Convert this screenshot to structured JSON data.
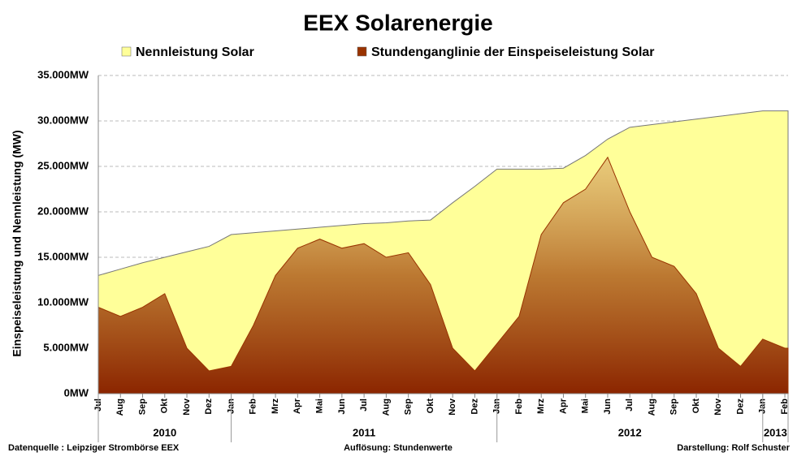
{
  "chart_data": {
    "type": "area",
    "title": "EEX Solarenergie",
    "y_label": "Einspeiseleistung und Nennleistung (MW)",
    "categories": [
      "Jul",
      "Aug",
      "Sep",
      "Okt",
      "Nov",
      "Dez",
      "Jan",
      "Feb",
      "Mrz",
      "Apr",
      "Mai",
      "Jun",
      "Jul",
      "Aug",
      "Sep",
      "Okt",
      "Nov",
      "Dez",
      "Jan",
      "Feb",
      "Mrz",
      "Apr",
      "Mai",
      "Jun",
      "Jul",
      "Aug",
      "Sep",
      "Okt",
      "Nov",
      "Dez",
      "Jan",
      "Feb"
    ],
    "year_groups": [
      {
        "label": "2010",
        "months": 6
      },
      {
        "label": "2011",
        "months": 12
      },
      {
        "label": "2012",
        "months": 12
      },
      {
        "label": "2013",
        "months": 2
      }
    ],
    "series": [
      {
        "name": "Nennleistung Solar",
        "color": "#ffff99",
        "values": [
          13000,
          13700,
          14400,
          15000,
          15600,
          16200,
          17500,
          17700,
          17900,
          18100,
          18300,
          18500,
          18700,
          18800,
          19000,
          19100,
          21000,
          22800,
          24700,
          24700,
          24700,
          24800,
          26200,
          28000,
          29300,
          29600,
          29900,
          30200,
          30500,
          30800,
          31100,
          31100
        ]
      },
      {
        "name": "Stundenganglinie der Einspeiseleistung Solar",
        "color": "#993300",
        "values": [
          9500,
          8500,
          9500,
          11000,
          5000,
          2500,
          3000,
          7500,
          13000,
          16000,
          17000,
          16000,
          16500,
          15000,
          15500,
          12000,
          5000,
          2500,
          5500,
          8500,
          17500,
          21000,
          22500,
          26000,
          20000,
          15000,
          14000,
          11000,
          5000,
          3000,
          6000,
          5000
        ]
      }
    ],
    "ylim": [
      0,
      35000
    ],
    "yticks": [
      {
        "value": 0,
        "label": "0MW"
      },
      {
        "value": 5000,
        "label": "5.000MW"
      },
      {
        "value": 10000,
        "label": "10.000MW"
      },
      {
        "value": 15000,
        "label": "15.000MW"
      },
      {
        "value": 20000,
        "label": "20.000MW"
      },
      {
        "value": 25000,
        "label": "25.000MW"
      },
      {
        "value": 30000,
        "label": "30.000MW"
      },
      {
        "value": 35000,
        "label": "35.000MW"
      }
    ],
    "grid": true,
    "footer": {
      "left": "Datenquelle :  Leipziger Strombörse EEX",
      "center": "Auflösung: Stundenwerte",
      "right": "Darstellung: Rolf Schuster"
    }
  }
}
